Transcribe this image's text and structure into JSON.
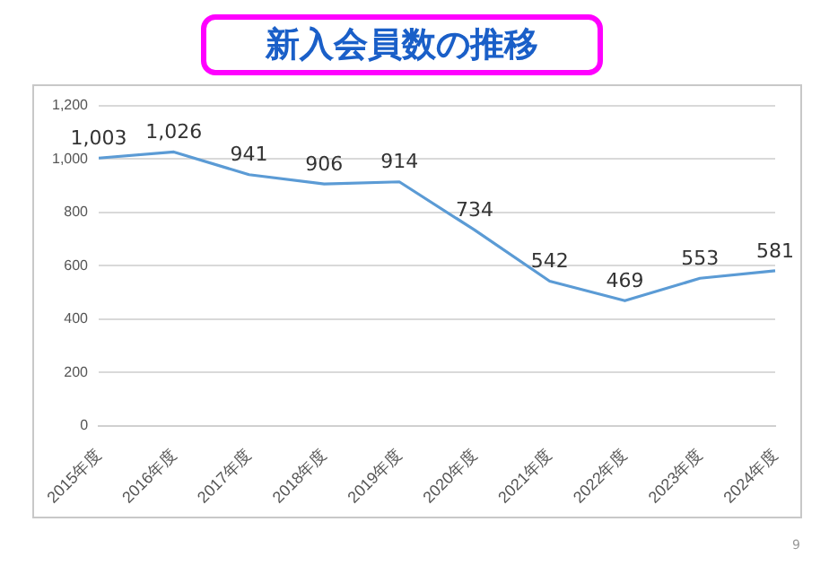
{
  "chart_data": {
    "type": "line",
    "title": "新入会員数の推移",
    "categories": [
      "2015年度",
      "2016年度",
      "2017年度",
      "2018年度",
      "2019年度",
      "2020年度",
      "2021年度",
      "2022年度",
      "2023年度",
      "2024年度"
    ],
    "series": [
      {
        "color": "#5b9bd5",
        "values": [
          1003,
          1026,
          941,
          906,
          914,
          734,
          542,
          469,
          553,
          581
        ],
        "value_labels": [
          "1,003",
          "1,026",
          "941",
          "906",
          "914",
          "734",
          "542",
          "469",
          "553",
          "581"
        ]
      }
    ],
    "ylim": [
      0,
      1200
    ],
    "yticks": [
      0,
      200,
      400,
      600,
      800,
      {
        "value": 1000,
        "label": "1,000"
      },
      {
        "value": 1200,
        "label": "1,200"
      }
    ],
    "grid": "y",
    "legend": false,
    "marker": "none",
    "line_style": "solid",
    "annotations": [
      "9"
    ]
  }
}
